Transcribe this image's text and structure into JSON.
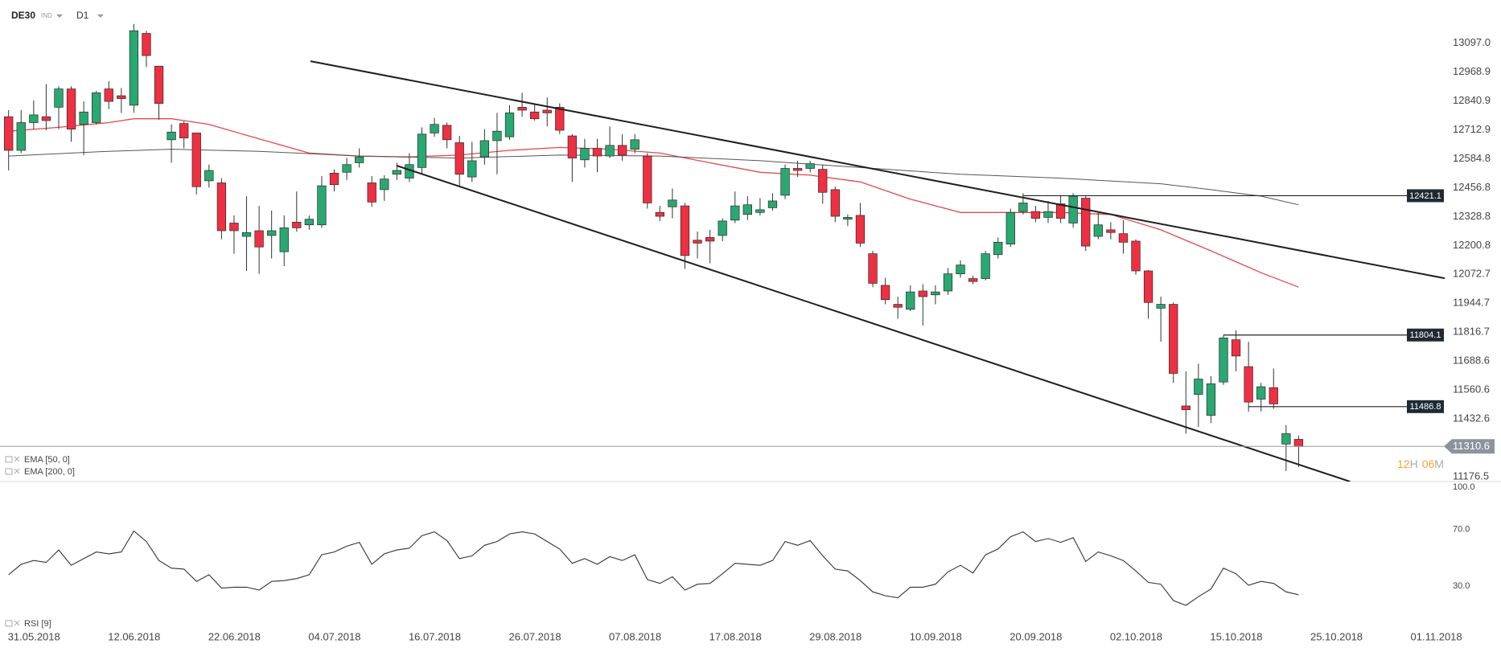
{
  "chart_data": [
    {
      "type": "candlestick",
      "symbol": "DE30",
      "market": "IND",
      "timeframe": "D1",
      "colors": {
        "up": "#29a872",
        "down": "#ee3042"
      },
      "ylim": [
        11155,
        13288
      ],
      "yticks": [
        {
          "value": 13097.0,
          "label": "13097.0"
        },
        {
          "value": 12968.9,
          "label": "12968.9"
        },
        {
          "value": 12840.9,
          "label": "12840.9"
        },
        {
          "value": 12712.9,
          "label": "12712.9"
        },
        {
          "value": 12584.8,
          "label": "12584.8"
        },
        {
          "value": 12456.8,
          "label": "12456.8"
        },
        {
          "value": 12328.8,
          "label": "12328.8"
        },
        {
          "value": 12200.8,
          "label": "12200.8"
        },
        {
          "value": 12072.7,
          "label": "12072.7"
        },
        {
          "value": 11944.7,
          "label": "11944.7"
        },
        {
          "value": 11816.7,
          "label": "11816.7"
        },
        {
          "value": 11688.6,
          "label": "11688.6"
        },
        {
          "value": 11560.6,
          "label": "11560.6"
        },
        {
          "value": 11432.6,
          "label": "11432.6"
        },
        {
          "value": 11176.5,
          "label": "11176.5"
        }
      ],
      "ohlc": {
        "open": [
          12771,
          12622,
          12745,
          12771,
          12813,
          12894,
          12737,
          12745,
          12894,
          12864,
          12822,
          13140,
          12995,
          12669,
          12741,
          12699,
          12487,
          12478,
          12300,
          12241,
          12266,
          12245,
          12173,
          12304,
          12292,
          12292,
          12521,
          12525,
          12567,
          12478,
          12448,
          12516,
          12499,
          12546,
          12699,
          12733,
          12656,
          12504,
          12593,
          12665,
          12682,
          12813,
          12792,
          12800,
          12813,
          12686,
          12580,
          12631,
          12597,
          12644,
          12627,
          12597,
          12347,
          12372,
          12376,
          12224,
          12236,
          12245,
          12313,
          12338,
          12347,
          12368,
          12423,
          12542,
          12542,
          12538,
          12448,
          12317,
          12334,
          12164,
          12024,
          11940,
          11918,
          11999,
          11982,
          11999,
          12075,
          12054,
          12054,
          12160,
          12207,
          12351,
          12351,
          12325,
          12385,
          12300,
          12410,
          12241,
          12270,
          12253,
          12220,
          12088,
          11923,
          11940,
          11490,
          11541,
          11448,
          11596,
          11783,
          11664,
          11520,
          11571,
          11321,
          11342
        ],
        "high": [
          12800,
          12800,
          12843,
          12915,
          12906,
          12906,
          12839,
          12885,
          12928,
          12898,
          13182,
          13152,
          12995,
          12737,
          12750,
          12699,
          12559,
          12499,
          12334,
          12419,
          12376,
          12355,
          12334,
          12440,
          12334,
          12508,
          12538,
          12588,
          12631,
          12508,
          12512,
          12567,
          12610,
          12724,
          12766,
          12745,
          12686,
          12660,
          12716,
          12788,
          12822,
          12877,
          12830,
          12856,
          12830,
          12694,
          12673,
          12673,
          12728,
          12694,
          12694,
          12610,
          12376,
          12453,
          12389,
          12262,
          12270,
          12321,
          12440,
          12419,
          12410,
          12432,
          12559,
          12576,
          12576,
          12559,
          12461,
          12338,
          12389,
          12177,
          12058,
          11974,
          12024,
          12029,
          12024,
          12101,
          12135,
          12067,
          12177,
          12236,
          12364,
          12432,
          12376,
          12398,
          12419,
          12432,
          12419,
          12347,
          12304,
          12313,
          12228,
          12092,
          11974,
          11948,
          11643,
          11677,
          11622,
          11804,
          11825,
          11774,
          11592,
          11656,
          11405,
          11359
        ],
        "low": [
          12533,
          12610,
          12716,
          12711,
          12716,
          12660,
          12601,
          12737,
          12805,
          12788,
          12788,
          12991,
          12758,
          12567,
          12631,
          12427,
          12457,
          12228,
          12164,
          12088,
          12075,
          12143,
          12109,
          12262,
          12270,
          12279,
          12440,
          12491,
          12546,
          12372,
          12398,
          12491,
          12482,
          12516,
          12682,
          12631,
          12461,
          12482,
          12559,
          12516,
          12669,
          12771,
          12754,
          12728,
          12694,
          12482,
          12546,
          12525,
          12588,
          12576,
          12610,
          12364,
          12309,
          12321,
          12097,
          12143,
          12122,
          12220,
          12300,
          12313,
          12334,
          12355,
          12406,
          12504,
          12525,
          12385,
          12304,
          12287,
          12194,
          12016,
          11940,
          11876,
          11910,
          11846,
          11940,
          11982,
          12058,
          12029,
          12046,
          12143,
          12194,
          12338,
          12304,
          12300,
          12300,
          12279,
          12177,
          12228,
          12228,
          12164,
          12071,
          11876,
          11774,
          11592,
          11367,
          11397,
          11414,
          11583,
          11643,
          11465,
          11465,
          11477,
          11202,
          11219
        ],
        "close": [
          12622,
          12745,
          12779,
          12754,
          12894,
          12716,
          12792,
          12877,
          12839,
          12851,
          13152,
          13042,
          12830,
          12703,
          12677,
          12461,
          12533,
          12266,
          12266,
          12258,
          12194,
          12266,
          12279,
          12279,
          12317,
          12465,
          12470,
          12559,
          12593,
          12393,
          12495,
          12533,
          12559,
          12694,
          12737,
          12669,
          12516,
          12576,
          12665,
          12707,
          12788,
          12800,
          12762,
          12788,
          12711,
          12588,
          12631,
          12597,
          12644,
          12601,
          12669,
          12389,
          12330,
          12402,
          12156,
          12211,
          12220,
          12309,
          12376,
          12381,
          12359,
          12398,
          12542,
          12533,
          12563,
          12436,
          12330,
          12325,
          12211,
          12033,
          11961,
          11927,
          11995,
          11974,
          11995,
          12075,
          12114,
          12041,
          12164,
          12215,
          12347,
          12389,
          12321,
          12351,
          12321,
          12419,
          12198,
          12292,
          12258,
          12215,
          12088,
          11948,
          11940,
          11634,
          11473,
          11609,
          11588,
          11791,
          11711,
          11507,
          11575,
          11499,
          11367,
          11310.6
        ]
      },
      "overlays": [
        {
          "name": "EMA [50, 0]",
          "color": "#e5484d",
          "x": [
            0,
            4,
            8,
            10,
            13,
            16,
            20,
            24,
            28,
            32,
            36,
            40,
            44,
            48,
            52,
            56,
            60,
            64,
            68,
            72,
            76,
            80,
            84,
            88,
            92,
            96,
            100,
            103
          ],
          "values": [
            12707,
            12724,
            12745,
            12762,
            12762,
            12737,
            12673,
            12610,
            12597,
            12593,
            12601,
            12622,
            12635,
            12627,
            12610,
            12567,
            12525,
            12512,
            12482,
            12406,
            12347,
            12347,
            12347,
            12338,
            12270,
            12177,
            12080,
            12016
          ]
        },
        {
          "name": "EMA [200, 0]",
          "color": "#555555",
          "x": [
            0,
            8,
            13,
            20,
            28,
            36,
            44,
            52,
            60,
            68,
            76,
            84,
            92,
            96,
            100,
            103
          ],
          "values": [
            12597,
            12618,
            12627,
            12618,
            12597,
            12588,
            12601,
            12597,
            12576,
            12546,
            12516,
            12499,
            12474,
            12448,
            12419,
            12381
          ]
        }
      ],
      "trendlines": [
        {
          "x": [
            24.1,
            114.8
          ],
          "y": [
            13017,
            12054
          ]
        },
        {
          "x": [
            31.0,
            107.1
          ],
          "y": [
            12554,
            11155
          ]
        }
      ],
      "levels": [
        {
          "value": 12421.1,
          "from": 81
        },
        {
          "value": 11804.1,
          "from": 97
        },
        {
          "value": 11486.8,
          "from": 99
        }
      ],
      "last_price": 11310.6,
      "countdown": [
        "12",
        "H",
        "06",
        "M"
      ]
    },
    {
      "type": "line",
      "name": "RSI [9]",
      "color": "#333333",
      "ylim": [
        0,
        100
      ],
      "yticks": [
        {
          "value": 100,
          "label": "100.0"
        },
        {
          "value": 70,
          "label": "70.0"
        },
        {
          "value": 30,
          "label": "30.0"
        }
      ],
      "values": [
        38.1,
        45.5,
        48.2,
        46.8,
        55.6,
        44.8,
        49.5,
        54.2,
        52.9,
        54.2,
        69.0,
        61.6,
        48.2,
        42.8,
        42.1,
        33.4,
        38.1,
        28.7,
        29.3,
        29.3,
        27.3,
        33.4,
        34.0,
        35.4,
        38.1,
        52.2,
        54.2,
        58.3,
        61.0,
        45.5,
        52.9,
        55.6,
        56.9,
        65.7,
        68.4,
        62.3,
        49.5,
        51.5,
        58.9,
        61.6,
        67.0,
        68.4,
        67.0,
        61.6,
        56.3,
        46.2,
        49.5,
        45.5,
        50.9,
        48.2,
        52.2,
        34.7,
        32.0,
        36.7,
        27.3,
        31.4,
        32.0,
        38.8,
        46.2,
        45.5,
        44.8,
        48.2,
        61.6,
        58.9,
        62.3,
        51.5,
        42.1,
        40.8,
        34.0,
        26.0,
        23.3,
        21.9,
        29.3,
        29.3,
        31.4,
        40.1,
        44.8,
        39.4,
        52.2,
        56.3,
        65.0,
        68.4,
        61.6,
        63.7,
        61.0,
        64.3,
        47.5,
        54.2,
        51.5,
        48.2,
        40.8,
        32.7,
        31.4,
        19.9,
        16.5,
        22.6,
        28.0,
        42.8,
        38.8,
        30.7,
        33.4,
        32.0,
        26.0,
        24.0
      ],
      "xticks": [
        {
          "value": 0,
          "label": "31.05.2018"
        },
        {
          "value": 8,
          "label": "12.06.2018"
        },
        {
          "value": 16,
          "label": "22.06.2018"
        },
        {
          "value": 24,
          "label": "04.07.2018"
        },
        {
          "value": 32,
          "label": "16.07.2018"
        },
        {
          "value": 40,
          "label": "26.07.2018"
        },
        {
          "value": 48,
          "label": "07.08.2018"
        },
        {
          "value": 56,
          "label": "17.08.2018"
        },
        {
          "value": 64,
          "label": "29.08.2018"
        },
        {
          "value": 72,
          "label": "10.09.2018"
        },
        {
          "value": 80,
          "label": "20.09.2018"
        },
        {
          "value": 88,
          "label": "02.10.2018"
        },
        {
          "value": 96,
          "label": "15.10.2018"
        },
        {
          "value": 104,
          "label": "25.10.2018"
        },
        {
          "value": 112,
          "label": "01.11.2018"
        }
      ]
    }
  ]
}
